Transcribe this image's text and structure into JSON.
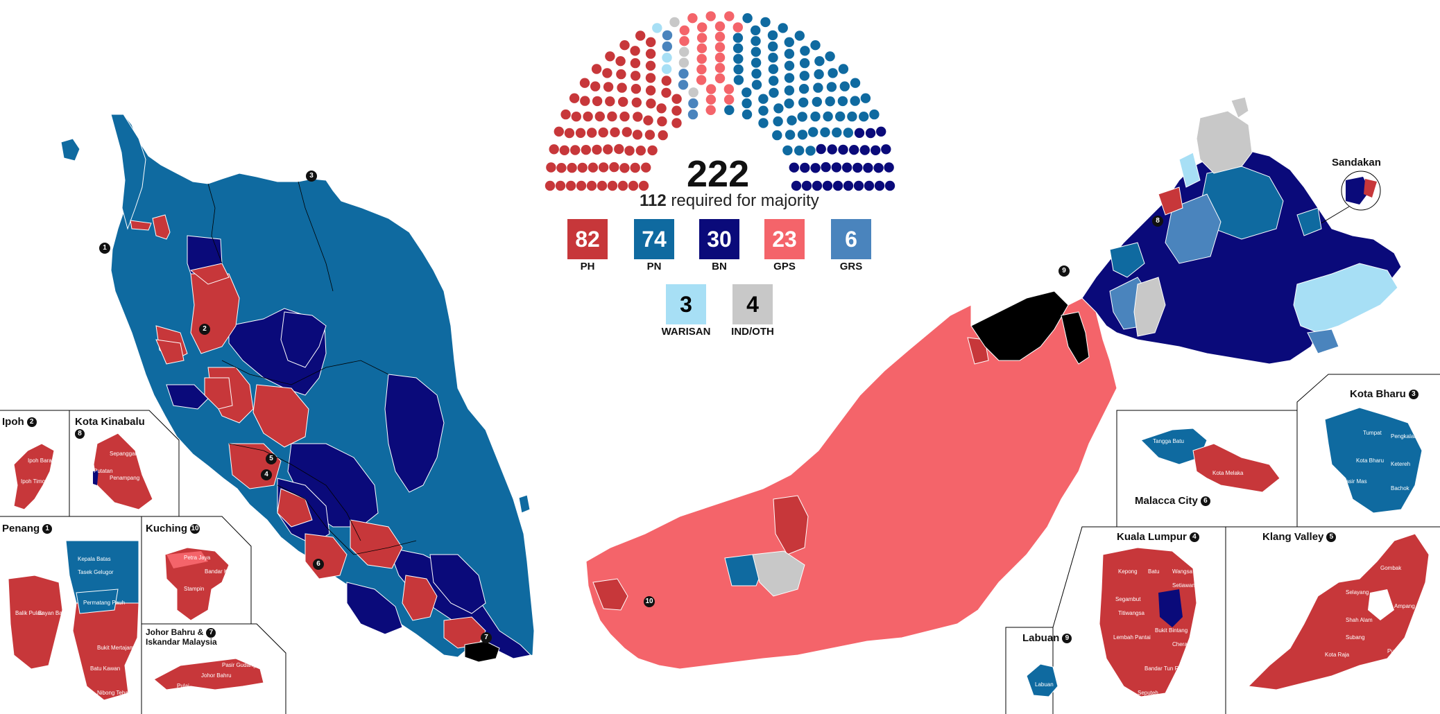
{
  "colors": {
    "PH": "#c7373a",
    "PN": "#0f6aa0",
    "BN": "#0a0a7a",
    "GPS": "#f4646a",
    "GRS": "#4a84bd",
    "WARISAN": "#a7dff5",
    "IND/OTH": "#c8c8c8",
    "brunei": "#000000",
    "border": "#ffffff"
  },
  "parliament": {
    "total": "222",
    "majority_number": "112",
    "majority_text": "required for majority",
    "parties": [
      {
        "key": "PH",
        "seats": 82,
        "seats_label": "82",
        "label": "PH"
      },
      {
        "key": "PN",
        "seats": 74,
        "seats_label": "74",
        "label": "PN"
      },
      {
        "key": "BN",
        "seats": 30,
        "seats_label": "30",
        "label": "BN"
      },
      {
        "key": "GPS",
        "seats": 23,
        "seats_label": "23",
        "label": "GPS"
      },
      {
        "key": "GRS",
        "seats": 6,
        "seats_label": "6",
        "label": "GRS"
      },
      {
        "key": "WARISAN",
        "seats": 3,
        "seats_label": "3",
        "label": "WARISAN"
      },
      {
        "key": "IND/OTH",
        "seats": 4,
        "seats_label": "4",
        "label": "IND/OTH"
      }
    ]
  },
  "insets": {
    "ipoh": {
      "title": "Ipoh",
      "num": "2"
    },
    "kota_kinabalu": {
      "title": "Kota Kinabalu",
      "num": "8"
    },
    "penang": {
      "title": "Penang",
      "num": "1"
    },
    "kuching": {
      "title": "Kuching",
      "num": "10"
    },
    "johor_bahru": {
      "title": "Johor Bahru &",
      "title2": "Iskandar Malaysia",
      "num": "7"
    },
    "kota_bharu": {
      "title": "Kota Bharu",
      "num": "3"
    },
    "malacca_city": {
      "title": "Malacca City",
      "num": "6"
    },
    "kuala_lumpur": {
      "title": "Kuala Lumpur",
      "num": "4"
    },
    "klang_valley": {
      "title": "Klang Valley",
      "num": "5"
    },
    "labuan": {
      "title": "Labuan",
      "num": "9"
    },
    "sandakan": {
      "title": "Sandakan"
    }
  },
  "map_markers": {
    "m1": "1",
    "m2": "2",
    "m3": "3",
    "m4": "4",
    "m5": "5",
    "m6": "6",
    "m7": "7",
    "m8": "8",
    "m9": "9",
    "m10": "10"
  },
  "inset_labels": {
    "penang": [
      "Kepala Batas",
      "Tasek Gelugor",
      "Permatang Pauh",
      "Balik Pulau",
      "Bayan Baru",
      "Bukit Mertajam",
      "Batu Kawan",
      "Nibong Tebal"
    ],
    "kota_bharu": [
      "Tumpat",
      "Pengkalan Chepa",
      "Kota Bharu",
      "Ketereh",
      "Bachok",
      "Pasir Mas"
    ],
    "malacca_city": [
      "Tangga Batu",
      "Kota Melaka"
    ],
    "kuala_lumpur": [
      "Kepong",
      "Batu",
      "Wangsa Maju",
      "Setiawangsa",
      "Segambut",
      "Titiwangsa",
      "Bukit Bintang",
      "Lembah Pantai",
      "Cheras",
      "Bandar Tun Razak",
      "Seputeh"
    ],
    "klang_valley": [
      "Gombak",
      "Selayang",
      "Ampang",
      "Shah Alam",
      "Subang",
      "Puchong",
      "Kota Raja"
    ],
    "kota_kinabalu": [
      "Sepanggar",
      "Putatan",
      "Penampang"
    ],
    "kuching": [
      "Petra Jaya",
      "Bandar Kuching",
      "Stampin"
    ],
    "johor_bahru": [
      "Johor Bahru",
      "Pasir Gudang",
      "Pulai"
    ],
    "labuan": [
      "Labuan"
    ],
    "ipoh": [
      "Ipoh Barat",
      "Ipoh Timor"
    ]
  }
}
